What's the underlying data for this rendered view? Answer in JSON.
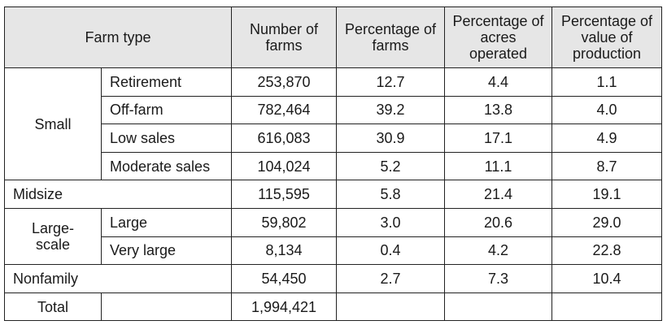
{
  "headers": {
    "farm_type": "Farm type",
    "number_of_farms": "Number of farms",
    "percentage_of_farms": "Percentage of farms",
    "percentage_of_acres": "Percentage of acres operated",
    "percentage_of_value": "Percentage of value of production"
  },
  "groups": {
    "small": "Small",
    "midsize": "Midsize",
    "large_scale": "Large-scale",
    "nonfamily": "Nonfamily",
    "total": "Total"
  },
  "rows": {
    "retirement": {
      "label": "Retirement",
      "farms": "253,870",
      "pct_farms": "12.7",
      "pct_acres": "4.4",
      "pct_value": "1.1"
    },
    "off_farm": {
      "label": "Off-farm",
      "farms": "782,464",
      "pct_farms": "39.2",
      "pct_acres": "13.8",
      "pct_value": "4.0"
    },
    "low_sales": {
      "label": "Low sales",
      "farms": "616,083",
      "pct_farms": "30.9",
      "pct_acres": "17.1",
      "pct_value": "4.9"
    },
    "moderate_sales": {
      "label": "Moderate sales",
      "farms": "104,024",
      "pct_farms": "5.2",
      "pct_acres": "11.1",
      "pct_value": "8.7"
    },
    "midsize": {
      "farms": "115,595",
      "pct_farms": "5.8",
      "pct_acres": "21.4",
      "pct_value": "19.1"
    },
    "large": {
      "label": "Large",
      "farms": "59,802",
      "pct_farms": "3.0",
      "pct_acres": "20.6",
      "pct_value": "29.0"
    },
    "very_large": {
      "label": "Very large",
      "farms": "8,134",
      "pct_farms": "0.4",
      "pct_acres": "4.2",
      "pct_value": "22.8"
    },
    "nonfamily": {
      "farms": "54,450",
      "pct_farms": "2.7",
      "pct_acres": "7.3",
      "pct_value": "10.4"
    },
    "total": {
      "farms": "1,994,421"
    }
  }
}
